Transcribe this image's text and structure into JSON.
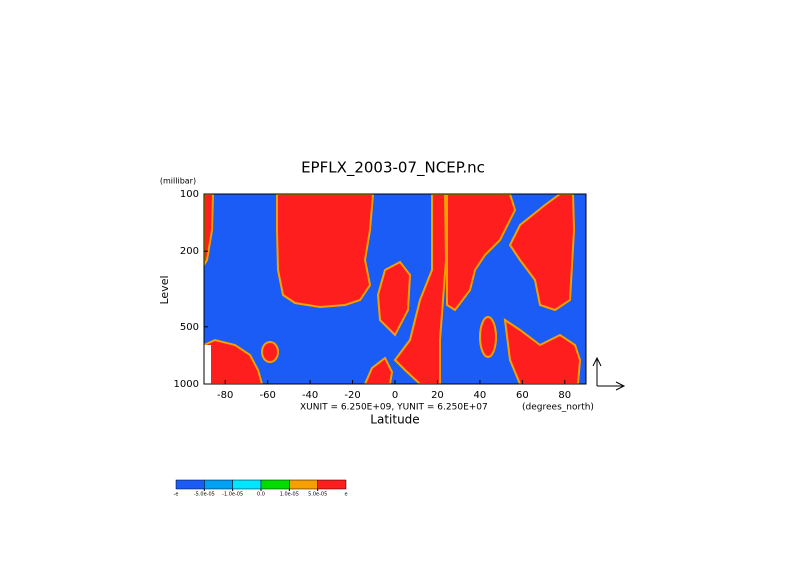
{
  "chart_data": {
    "type": "contour",
    "title": "EPFLX_2003-07_NCEP.nc",
    "x_label": "Latitude",
    "y_label": "Level",
    "y_units": "(millibar)",
    "x_units": "(degrees_north)",
    "scale_note": "XUNIT = 6.250E+09, YUNIT = 6.250E+07",
    "xlim": [
      -90,
      90
    ],
    "xticks": [
      -80,
      -60,
      -40,
      -20,
      0,
      20,
      40,
      60,
      80
    ],
    "ylim": [
      1000,
      100
    ],
    "yticks": [
      100,
      200,
      500,
      1000
    ],
    "ylog": true,
    "colorbar": {
      "colors": [
        "#1a5cf5",
        "#00a0f5",
        "#00e6ff",
        "#00dc00",
        "#f5a000",
        "#ff1e1e"
      ],
      "end_labels": [
        "-e",
        "e"
      ],
      "ticks": [
        {
          "value": -5e-05,
          "label": "-5.0e-05"
        },
        {
          "value": -1e-05,
          "label": "-1.0e-05"
        },
        {
          "value": 0,
          "label": "0.0"
        },
        {
          "value": 1e-05,
          "label": "1.0e-05"
        },
        {
          "value": 5e-05,
          "label": "5.0e-05"
        }
      ]
    }
  }
}
